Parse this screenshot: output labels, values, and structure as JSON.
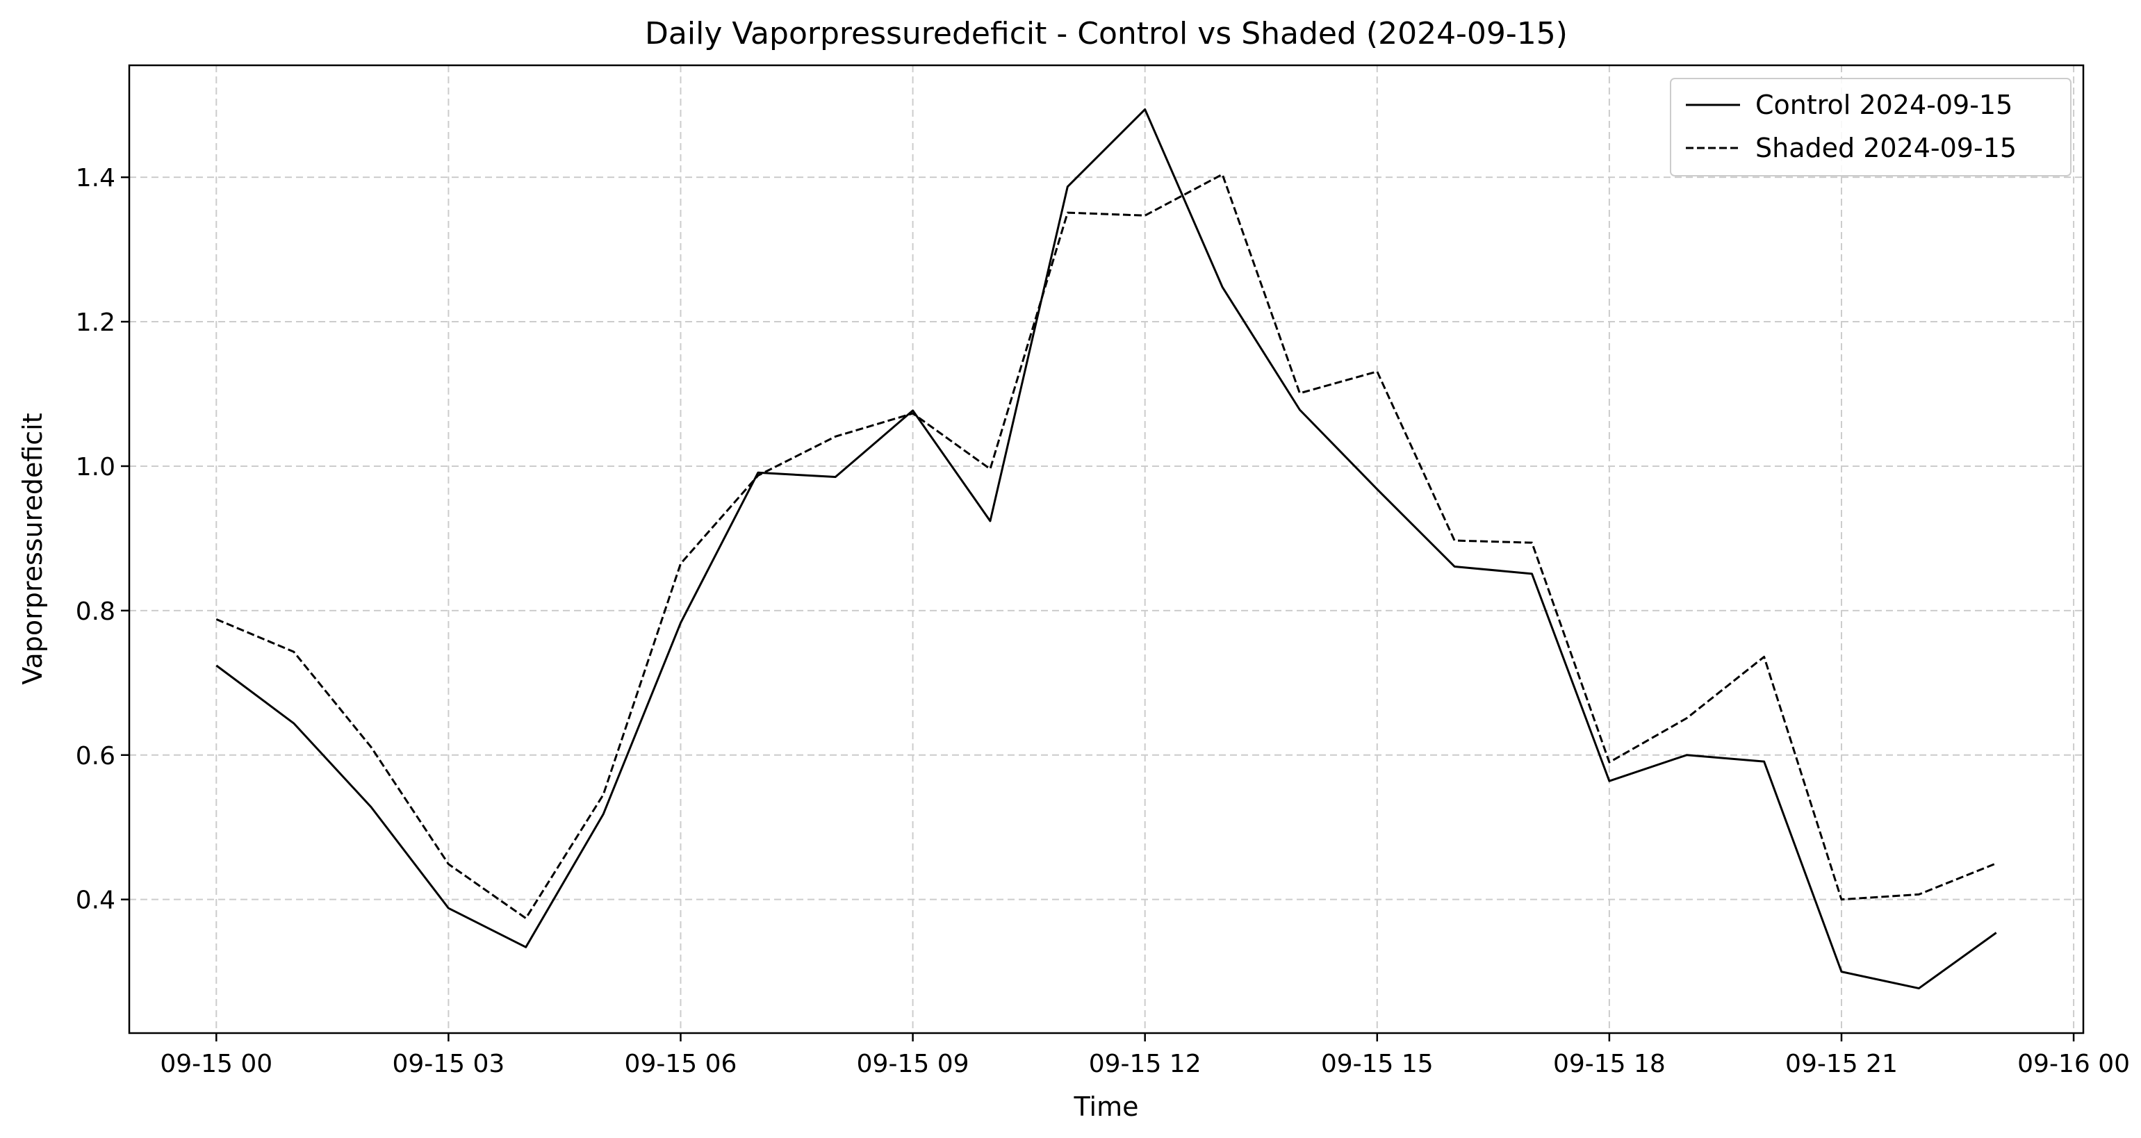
{
  "chart_data": {
    "type": "line",
    "title": "Daily Vaporpressuredeficit - Control vs Shaded (2024-09-15)",
    "xlabel": "Time",
    "ylabel": "Vaporpressuredeficit",
    "x_unit": "hours since 2024-09-15 00:00",
    "xlim": [
      -1.125,
      24.125
    ],
    "ylim": [
      0.215,
      1.555
    ],
    "x_ticks": [
      {
        "value": 0,
        "label": "09-15 00"
      },
      {
        "value": 3,
        "label": "09-15 03"
      },
      {
        "value": 6,
        "label": "09-15 06"
      },
      {
        "value": 9,
        "label": "09-15 09"
      },
      {
        "value": 12,
        "label": "09-15 12"
      },
      {
        "value": 15,
        "label": "09-15 15"
      },
      {
        "value": 18,
        "label": "09-15 18"
      },
      {
        "value": 21,
        "label": "09-15 21"
      },
      {
        "value": 24,
        "label": "09-16 00"
      }
    ],
    "y_ticks": [
      {
        "value": 0.4,
        "label": "0.4"
      },
      {
        "value": 0.6,
        "label": "0.6"
      },
      {
        "value": 0.8,
        "label": "0.8"
      },
      {
        "value": 1.0,
        "label": "1.0"
      },
      {
        "value": 1.2,
        "label": "1.2"
      },
      {
        "value": 1.4,
        "label": "1.4"
      }
    ],
    "grid": true,
    "legend_position": "top-right",
    "x": [
      0,
      1,
      2,
      3,
      4,
      5,
      6,
      7,
      8,
      9,
      10,
      11,
      12,
      13,
      14,
      15,
      16,
      17,
      18,
      19,
      20,
      21,
      22,
      23
    ],
    "series": [
      {
        "name": "Control 2024-09-15",
        "style": "solid",
        "color": "#000000",
        "values": [
          0.724,
          0.644,
          0.528,
          0.388,
          0.334,
          0.518,
          0.783,
          0.991,
          0.985,
          1.077,
          0.924,
          1.387,
          1.494,
          1.248,
          1.078,
          0.968,
          0.861,
          0.851,
          0.564,
          0.6,
          0.591,
          0.3,
          0.277,
          0.354
        ]
      },
      {
        "name": "Shaded 2024-09-15",
        "style": "dashed",
        "color": "#000000",
        "values": [
          0.788,
          0.743,
          0.611,
          0.449,
          0.374,
          0.545,
          0.865,
          0.987,
          1.041,
          1.073,
          0.996,
          1.351,
          1.347,
          1.404,
          1.101,
          1.131,
          0.897,
          0.894,
          0.59,
          0.651,
          0.736,
          0.4,
          0.407,
          0.45
        ]
      }
    ]
  }
}
